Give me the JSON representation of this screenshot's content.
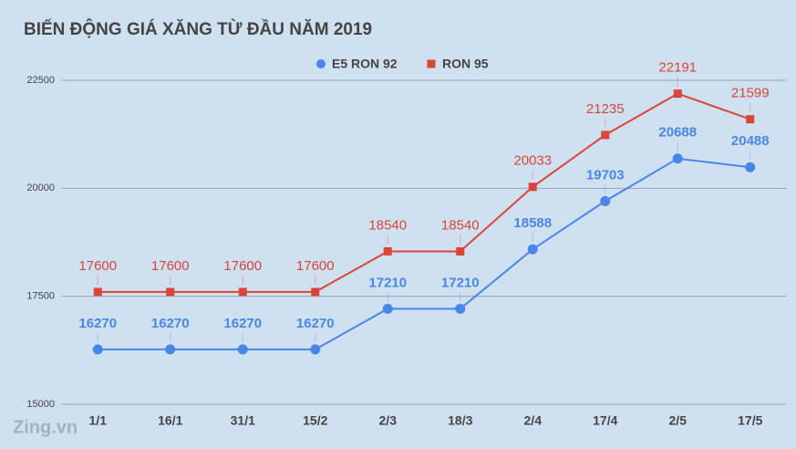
{
  "chart_data": {
    "type": "line",
    "title": "BIẾN ĐỘNG GIÁ XĂNG TỪ ĐẦU NĂM 2019",
    "categories": [
      "1/1",
      "16/1",
      "31/1",
      "15/2",
      "2/3",
      "18/3",
      "2/4",
      "17/4",
      "2/5",
      "17/5"
    ],
    "series": [
      {
        "name": "E5 RON 92",
        "color": "#4a86e8",
        "marker": "circle",
        "values": [
          16270,
          16270,
          16270,
          16270,
          17210,
          17210,
          18588,
          19703,
          20688,
          20488
        ]
      },
      {
        "name": "RON 95",
        "color": "#d9453a",
        "marker": "square",
        "values": [
          17600,
          17600,
          17600,
          17600,
          18540,
          18540,
          20033,
          21235,
          22191,
          21599
        ]
      }
    ],
    "ylim": [
      15000,
      22500
    ],
    "yticks": [
      15000,
      17500,
      20000,
      22500
    ],
    "grid": true,
    "legend": "top",
    "watermark": "Zing.vn"
  }
}
